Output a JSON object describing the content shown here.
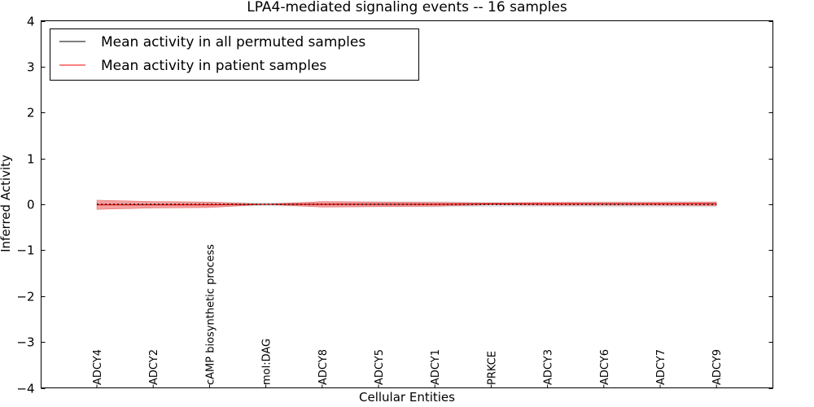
{
  "chart_data": {
    "type": "line",
    "title": "LPA4-mediated signaling events -- 16 samples",
    "xlabel": "Cellular Entities",
    "ylabel": "Inferred Activity",
    "ylim": [
      -4,
      4
    ],
    "yticks": [
      4,
      3,
      2,
      1,
      0,
      -1,
      -2,
      -3,
      -4
    ],
    "ytick_labels": [
      "4",
      "3",
      "2",
      "1",
      "0",
      "−1",
      "−2",
      "−3",
      "−4"
    ],
    "grid": false,
    "legend_position": "top-left",
    "categories": [
      "ADCY4",
      "ADCY2",
      "cAMP biosynthetic process",
      "mol:DAG",
      "ADCY8",
      "ADCY5",
      "ADCY1",
      "PRKCE",
      "ADCY3",
      "ADCY6",
      "ADCY7",
      "ADCY9"
    ],
    "series": [
      {
        "name": "Mean activity in all permuted samples",
        "color": "#000000",
        "values": [
          0,
          0,
          0,
          0,
          0,
          0,
          0,
          0,
          0,
          0,
          0,
          0
        ],
        "band": [
          0.03,
          0.04,
          0.05,
          0.04,
          0.05,
          0.06,
          0.06,
          0.05,
          0.05,
          0.06,
          0.06,
          0.06
        ]
      },
      {
        "name": "Mean activity in patient samples",
        "color": "#ff0000",
        "values": [
          -0.01,
          -0.01,
          -0.01,
          0.0,
          0.0,
          0.0,
          0.0,
          0.01,
          0.01,
          0.01,
          0.01,
          0.01
        ],
        "band": [
          0.1,
          0.07,
          0.06,
          0.0,
          0.06,
          0.05,
          0.04,
          0.02,
          0.03,
          0.03,
          0.03,
          0.04
        ]
      }
    ]
  }
}
